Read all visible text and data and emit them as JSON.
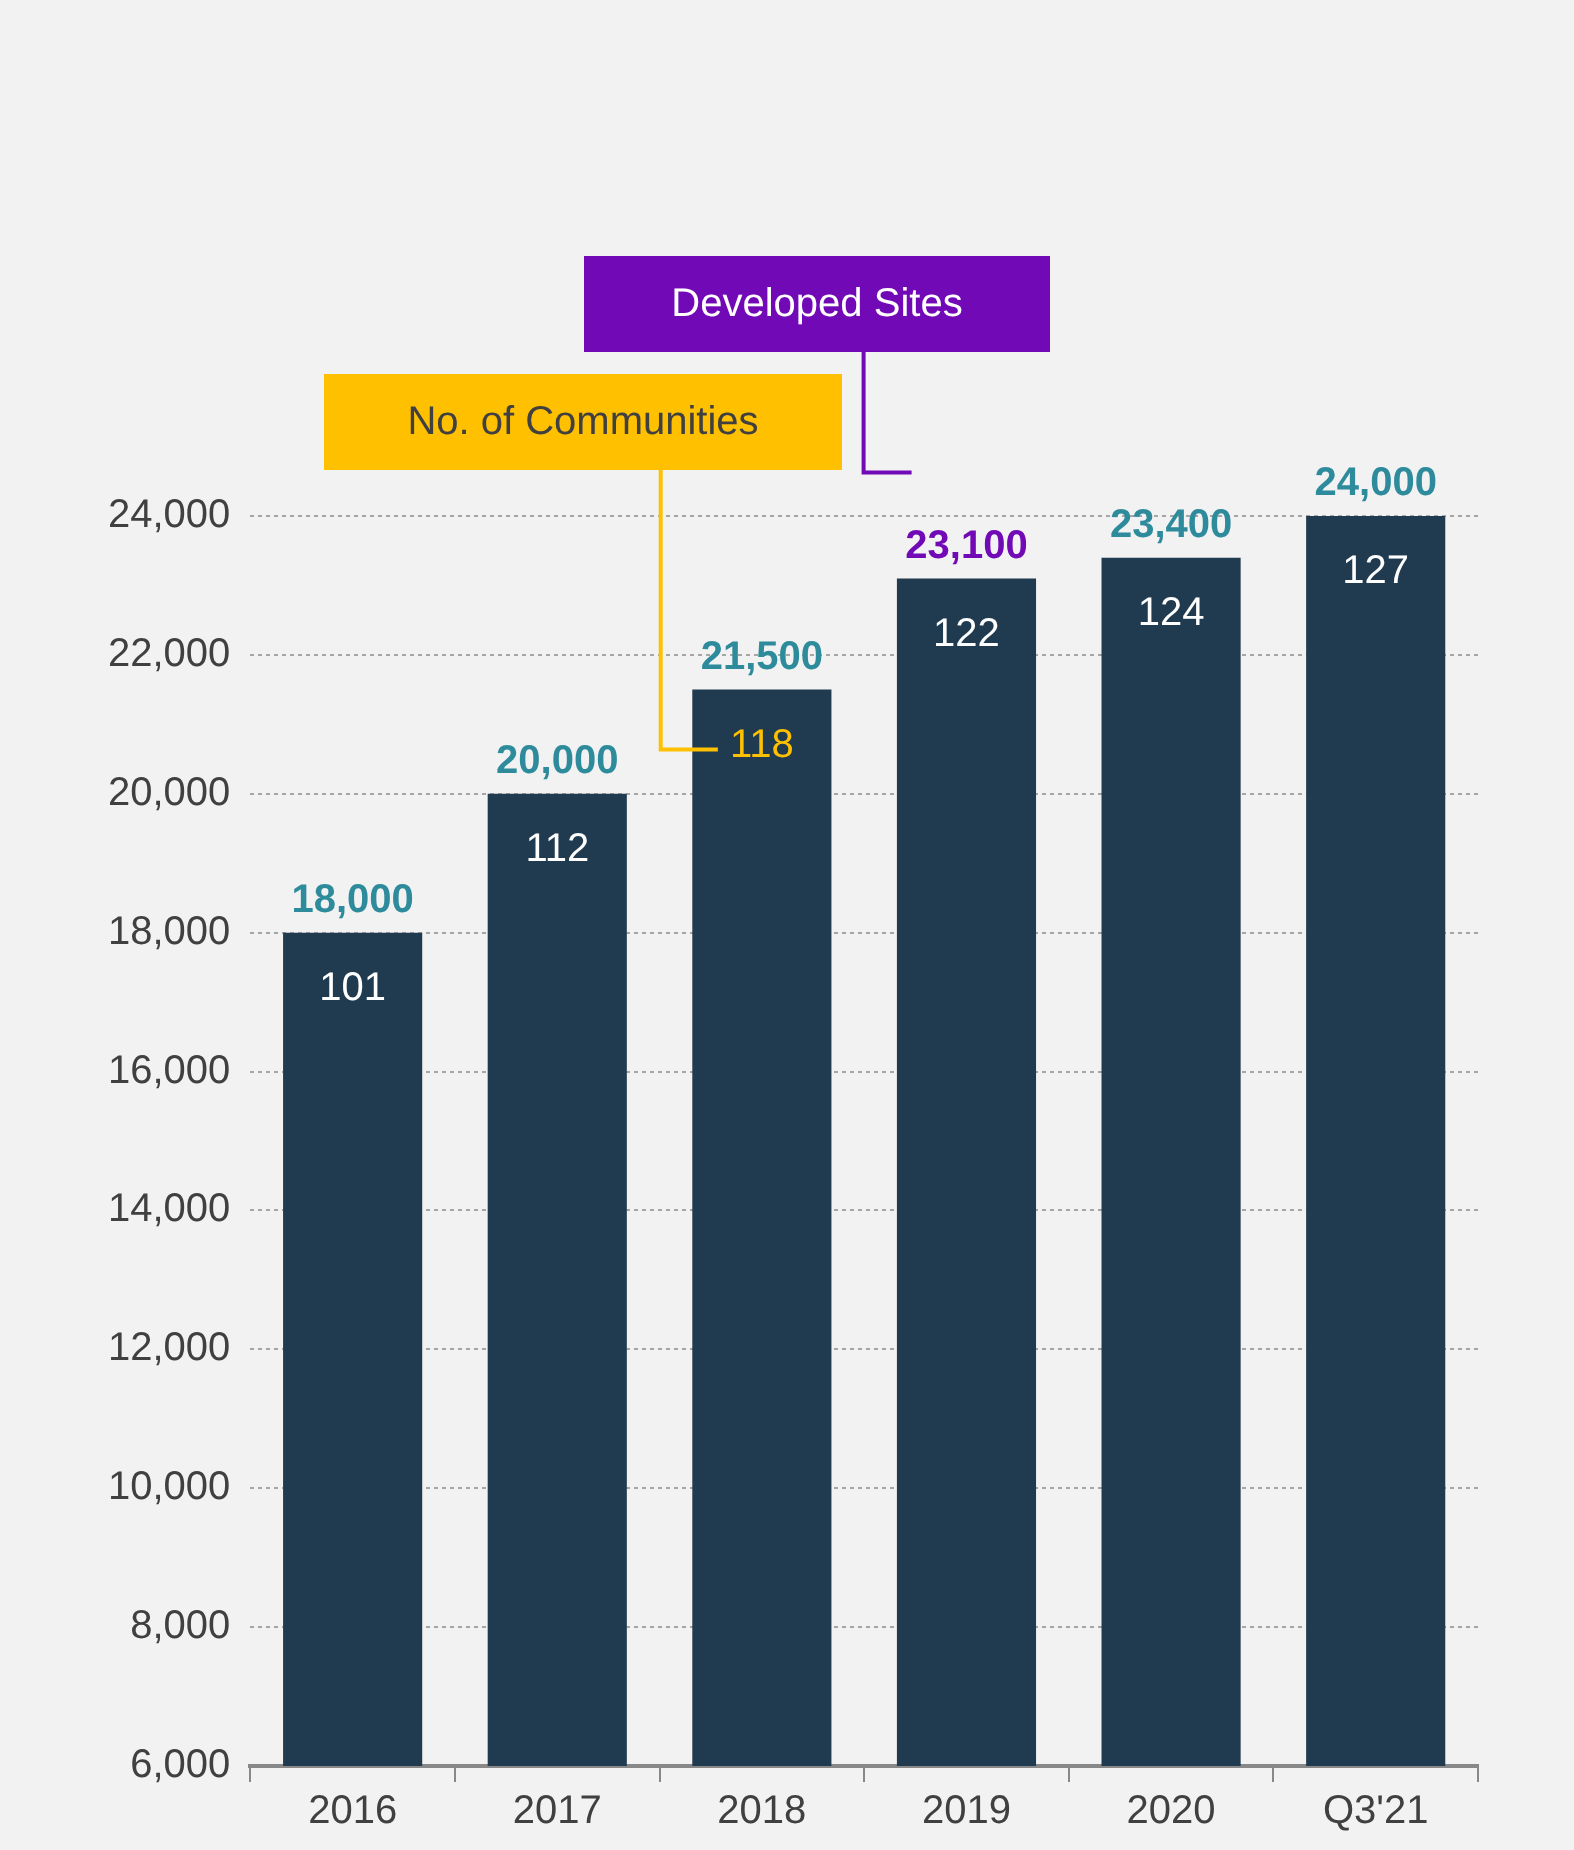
{
  "chart_data": {
    "type": "bar",
    "categories": [
      "2016",
      "2017",
      "2018",
      "2019",
      "2020",
      "Q3'21"
    ],
    "values": [
      18000,
      20000,
      21500,
      23100,
      23400,
      24000
    ],
    "color": "#203a4f",
    "value_labels": [
      "18,000",
      "20,000",
      "21,500",
      "23,100",
      "23,400",
      "24,000"
    ],
    "ylim": [
      6000,
      24000
    ],
    "yticks": [
      {
        "value": 6000,
        "label": "6,000"
      },
      {
        "value": 8000,
        "label": "8,000"
      },
      {
        "value": 10000,
        "label": "10,000"
      },
      {
        "value": 12000,
        "label": "12,000"
      },
      {
        "value": 14000,
        "label": "14,000"
      },
      {
        "value": 16000,
        "label": "16,000"
      },
      {
        "value": 18000,
        "label": "18,000"
      },
      {
        "value": 20000,
        "label": "20,000"
      },
      {
        "value": 22000,
        "label": "22,000"
      },
      {
        "value": 24000,
        "label": "24,000"
      }
    ],
    "grid": "y",
    "annotations": [
      "Developed Sites",
      "No. of Communities",
      {
        "text": "101",
        "x": "2016",
        "y": 18000
      },
      {
        "text": "112",
        "x": "2017",
        "y": 20000
      },
      {
        "text": "118",
        "x": "2018",
        "y": 21500
      },
      {
        "text": "122",
        "x": "2019",
        "y": 23100
      },
      {
        "text": "124",
        "x": "2020",
        "y": 23400
      },
      {
        "text": "127",
        "x": "Q3'21",
        "y": 24000
      }
    ]
  }
}
